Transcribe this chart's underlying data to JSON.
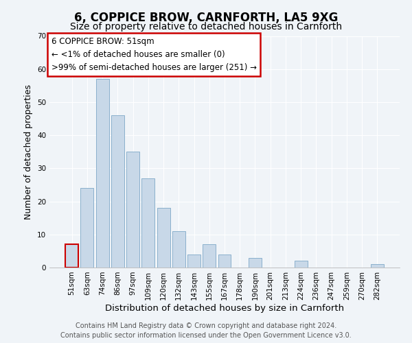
{
  "title": "6, COPPICE BROW, CARNFORTH, LA5 9XG",
  "subtitle": "Size of property relative to detached houses in Carnforth",
  "xlabel": "Distribution of detached houses by size in Carnforth",
  "ylabel": "Number of detached properties",
  "categories": [
    "51sqm",
    "63sqm",
    "74sqm",
    "86sqm",
    "97sqm",
    "109sqm",
    "120sqm",
    "132sqm",
    "143sqm",
    "155sqm",
    "167sqm",
    "178sqm",
    "190sqm",
    "201sqm",
    "213sqm",
    "224sqm",
    "236sqm",
    "247sqm",
    "259sqm",
    "270sqm",
    "282sqm"
  ],
  "values": [
    7,
    24,
    57,
    46,
    35,
    27,
    18,
    11,
    4,
    7,
    4,
    0,
    3,
    0,
    0,
    2,
    0,
    0,
    0,
    0,
    1
  ],
  "bar_color": "#c8d8e8",
  "bar_edge_color": "#8ab0cc",
  "highlight_bar_index": 0,
  "highlight_bar_color": "#c8d8e8",
  "highlight_bar_edge_color": "#cc0000",
  "ylim": [
    0,
    70
  ],
  "yticks": [
    0,
    10,
    20,
    30,
    40,
    50,
    60,
    70
  ],
  "annotation_line1": "6 COPPICE BROW: 51sqm",
  "annotation_line2": "← <1% of detached houses are smaller (0)",
  "annotation_line3": ">99% of semi-detached houses are larger (251) →",
  "annotation_box_edge_color": "#cc0000",
  "footer_line1": "Contains HM Land Registry data © Crown copyright and database right 2024.",
  "footer_line2": "Contains public sector information licensed under the Open Government Licence v3.0.",
  "background_color": "#f0f4f8",
  "grid_color": "#ffffff",
  "title_fontsize": 12,
  "subtitle_fontsize": 10,
  "xlabel_fontsize": 9.5,
  "ylabel_fontsize": 9,
  "tick_fontsize": 7.5,
  "annotation_fontsize": 8.5,
  "footer_fontsize": 7
}
